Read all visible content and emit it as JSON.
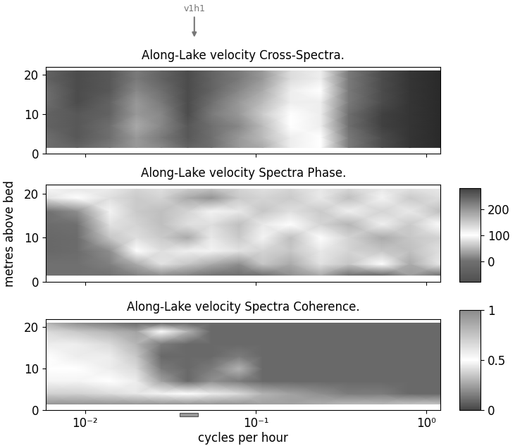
{
  "chart_data": [
    {
      "type": "heatmap",
      "title": "Along-Lake velocity Cross-Spectra.",
      "log": "x",
      "tick_labels": "y",
      "annotation": {
        "text": "v1h1",
        "x": 0.0437
      },
      "x": [
        0.0059,
        0.009,
        0.014,
        0.02,
        0.028,
        0.04,
        0.055,
        0.08,
        0.11,
        0.16,
        0.24,
        0.35,
        0.55,
        0.8,
        1.21
      ],
      "y": [
        1.5,
        4,
        7,
        10,
        13,
        16,
        19,
        21
      ],
      "values": [
        [
          0.45,
          0.4,
          0.5,
          0.6,
          0.55,
          0.4,
          0.45,
          0.6,
          0.65,
          0.85,
          0.9,
          0.5,
          0.3,
          0.2,
          0.15
        ],
        [
          0.45,
          0.35,
          0.45,
          0.6,
          0.5,
          0.35,
          0.45,
          0.6,
          0.7,
          0.85,
          0.9,
          0.5,
          0.3,
          0.2,
          0.15
        ],
        [
          0.4,
          0.35,
          0.45,
          0.65,
          0.55,
          0.35,
          0.45,
          0.55,
          0.7,
          0.9,
          0.85,
          0.45,
          0.25,
          0.2,
          0.15
        ],
        [
          0.4,
          0.35,
          0.4,
          0.6,
          0.55,
          0.3,
          0.5,
          0.6,
          0.75,
          0.9,
          0.85,
          0.45,
          0.25,
          0.2,
          0.15
        ],
        [
          0.45,
          0.3,
          0.4,
          0.6,
          0.5,
          0.3,
          0.45,
          0.6,
          0.7,
          0.85,
          0.85,
          0.5,
          0.3,
          0.2,
          0.15
        ],
        [
          0.45,
          0.3,
          0.35,
          0.55,
          0.45,
          0.3,
          0.4,
          0.55,
          0.65,
          0.85,
          0.9,
          0.5,
          0.3,
          0.2,
          0.15
        ],
        [
          0.4,
          0.3,
          0.35,
          0.5,
          0.4,
          0.3,
          0.4,
          0.5,
          0.6,
          0.8,
          0.85,
          0.5,
          0.3,
          0.2,
          0.15
        ],
        [
          0.4,
          0.3,
          0.35,
          0.5,
          0.4,
          0.3,
          0.4,
          0.5,
          0.6,
          0.8,
          0.85,
          0.5,
          0.3,
          0.2,
          0.15
        ]
      ],
      "xlim": [
        0.0059,
        1.21
      ],
      "ylim": [
        0,
        22
      ],
      "xticks": [
        {
          "value": 0.01,
          "label": "10⁻²"
        },
        {
          "value": 0.1,
          "label": "10⁻¹"
        },
        {
          "value": 1,
          "label": "10⁰"
        }
      ],
      "yticks": [
        0,
        10,
        20
      ]
    },
    {
      "type": "heatmap",
      "title": "Along-Lake velocity Spectra Phase.",
      "log": "x",
      "tick_labels": "y",
      "y_label": "metres above bed",
      "x": [
        0.0059,
        0.009,
        0.014,
        0.02,
        0.028,
        0.04,
        0.055,
        0.08,
        0.11,
        0.16,
        0.24,
        0.35,
        0.55,
        0.8,
        1.21
      ],
      "y": [
        1.5,
        4,
        7,
        10,
        13,
        16,
        19,
        21
      ],
      "values": [
        [
          0,
          0,
          0,
          10,
          20,
          10,
          0,
          -10,
          0,
          20,
          40,
          0,
          -20,
          30,
          0
        ],
        [
          0,
          0,
          10,
          40,
          80,
          60,
          40,
          20,
          60,
          40,
          80,
          60,
          100,
          40,
          120
        ],
        [
          -20,
          -10,
          20,
          100,
          130,
          90,
          110,
          80,
          140,
          60,
          120,
          140,
          60,
          160,
          80
        ],
        [
          -20,
          -10,
          60,
          130,
          150,
          40,
          120,
          150,
          110,
          160,
          100,
          140,
          180,
          60,
          140
        ],
        [
          -10,
          0,
          80,
          140,
          160,
          130,
          130,
          160,
          120,
          100,
          140,
          170,
          90,
          150,
          100
        ],
        [
          0,
          20,
          110,
          150,
          160,
          140,
          110,
          120,
          60,
          130,
          150,
          90,
          140,
          120,
          160
        ],
        [
          80,
          100,
          130,
          150,
          140,
          180,
          200,
          150,
          140,
          150,
          120,
          160,
          110,
          150,
          130
        ],
        [
          110,
          120,
          120,
          140,
          130,
          150,
          160,
          140,
          130,
          140,
          120,
          140,
          120,
          130,
          120
        ]
      ],
      "colorbar": {
        "range": [
          -80,
          280
        ],
        "ticks": [
          0,
          100,
          200
        ]
      },
      "xlim": [
        0.0059,
        1.21
      ],
      "ylim": [
        0,
        22
      ],
      "xticks": [
        {
          "value": 0.01,
          "label": "10⁻²"
        },
        {
          "value": 0.1,
          "label": "10⁻¹"
        },
        {
          "value": 1,
          "label": "10⁰"
        }
      ],
      "yticks": [
        0,
        10,
        20
      ]
    },
    {
      "type": "heatmap",
      "title": "Along-Lake velocity Spectra Coherence.",
      "log": "x",
      "x_label": "cycles per hour",
      "band": [
        0.036,
        0.046
      ],
      "x": [
        0.0059,
        0.009,
        0.014,
        0.02,
        0.028,
        0.04,
        0.055,
        0.08,
        0.11,
        0.16,
        0.24,
        0.35,
        0.55,
        0.8,
        1.21
      ],
      "y": [
        1.5,
        4,
        7,
        10,
        13,
        16,
        19,
        21
      ],
      "values": [
        [
          0.95,
          0.95,
          0.95,
          0.95,
          0.95,
          0.95,
          0.95,
          0.95,
          0.9,
          0.9,
          0.85,
          0.8,
          0.8,
          0.75,
          0.75
        ],
        [
          0.7,
          0.7,
          0.65,
          0.6,
          0.55,
          0.5,
          0.45,
          0.4,
          0.3,
          0.25,
          0.2,
          0.15,
          0.15,
          0.1,
          0.1
        ],
        [
          0.55,
          0.55,
          0.5,
          0.45,
          0.25,
          0.1,
          0.2,
          0.15,
          0.1,
          0.1,
          0.1,
          0.1,
          0.1,
          0.1,
          0.1
        ],
        [
          0.5,
          0.5,
          0.45,
          0.4,
          0.15,
          0.1,
          0.15,
          0.3,
          0.1,
          0.1,
          0.1,
          0.1,
          0.1,
          0.1,
          0.1
        ],
        [
          0.5,
          0.45,
          0.45,
          0.35,
          0.1,
          0.1,
          0.1,
          0.15,
          0.1,
          0.1,
          0.1,
          0.1,
          0.1,
          0.1,
          0.1
        ],
        [
          0.45,
          0.45,
          0.4,
          0.3,
          0.15,
          0.1,
          0.1,
          0.1,
          0.1,
          0.1,
          0.1,
          0.1,
          0.1,
          0.1,
          0.1
        ],
        [
          0.4,
          0.35,
          0.3,
          0.25,
          0.5,
          0.3,
          0.1,
          0.1,
          0.1,
          0.1,
          0.1,
          0.1,
          0.1,
          0.1,
          0.1
        ],
        [
          0.3,
          0.2,
          0.15,
          0.1,
          0.1,
          0.1,
          0.1,
          0.1,
          0.1,
          0.1,
          0.1,
          0.1,
          0.1,
          0.1,
          0.1
        ]
      ],
      "colorbar": {
        "range": [
          0,
          1
        ],
        "ticks": [
          0,
          0.5,
          1
        ]
      },
      "xlim": [
        0.0059,
        1.21
      ],
      "ylim": [
        0,
        22
      ],
      "xticks": [
        {
          "value": 0.01,
          "label": "10⁻²"
        },
        {
          "value": 0.1,
          "label": "10⁻¹"
        },
        {
          "value": 1,
          "label": "10⁰"
        }
      ],
      "yticks": [
        0,
        10,
        20
      ]
    }
  ]
}
